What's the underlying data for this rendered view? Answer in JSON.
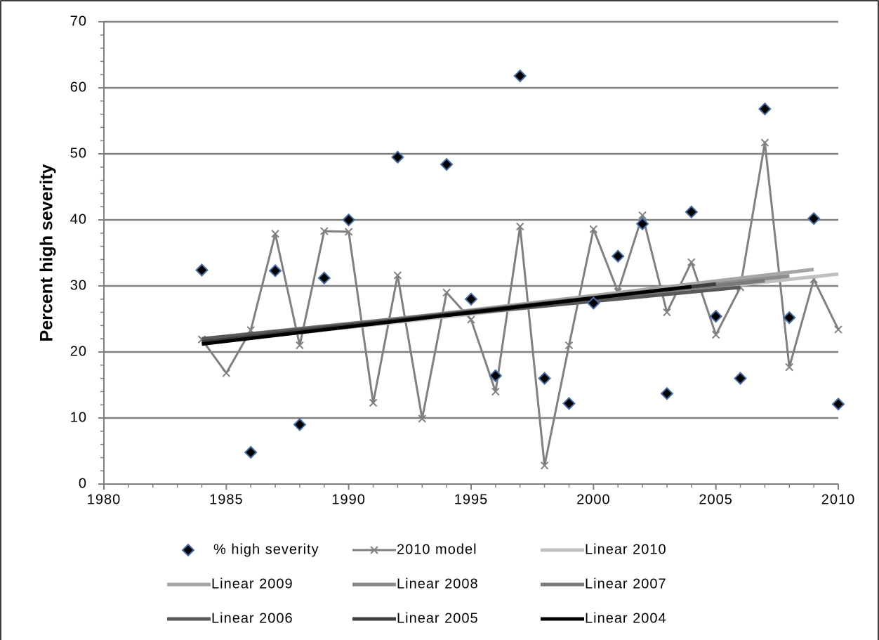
{
  "chart_data": {
    "type": "scatter",
    "y_label": "Percent high severity",
    "xlim": [
      1980,
      2010
    ],
    "xticks": [
      1980,
      1985,
      1990,
      1995,
      2000,
      2005,
      2010
    ],
    "x_minor_step": 1,
    "ylim": [
      0,
      70
    ],
    "yticks": [
      0,
      10,
      20,
      30,
      40,
      50,
      60,
      70
    ],
    "y_minor_step": 2,
    "grid": true,
    "series": [
      {
        "name": "% high severity",
        "style": "marker",
        "color": "#000000",
        "x": [
          1984,
          1986,
          1987,
          1988,
          1989,
          1990,
          1992,
          1994,
          1995,
          1996,
          1997,
          1998,
          1999,
          2000,
          2001,
          2002,
          2003,
          2004,
          2005,
          2006,
          2007,
          2008,
          2009,
          2010
        ],
        "values": [
          32.4,
          4.8,
          32.3,
          9.0,
          31.2,
          40.0,
          49.5,
          48.4,
          28.0,
          16.4,
          61.8,
          16.0,
          12.2,
          27.4,
          34.5,
          39.4,
          13.7,
          41.2,
          25.4,
          16.0,
          56.8,
          25.2,
          40.2,
          12.1
        ]
      },
      {
        "name": "2010 model",
        "style": "line-marker",
        "color": "#808080",
        "x": [
          1984,
          1985,
          1986,
          1987,
          1988,
          1989,
          1990,
          1991,
          1992,
          1993,
          1994,
          1995,
          1996,
          1997,
          1998,
          1999,
          2000,
          2001,
          2002,
          2003,
          2004,
          2005,
          2006,
          2007,
          2008,
          2009,
          2010
        ],
        "values": [
          21.9,
          16.8,
          23.3,
          37.9,
          21.0,
          38.3,
          38.2,
          12.3,
          31.6,
          9.9,
          29.0,
          24.9,
          14.0,
          39.0,
          2.8,
          21.0,
          38.6,
          29.1,
          40.7,
          26.0,
          33.6,
          22.6,
          29.8,
          51.7,
          17.7,
          31.0,
          23.4
        ]
      },
      {
        "name": "Linear 2010",
        "style": "line",
        "color": "#c0c0c0",
        "x": [
          1984,
          2010
        ],
        "values": [
          21.3,
          31.8
        ]
      },
      {
        "name": "Linear 2009",
        "style": "line",
        "color": "#a6a6a6",
        "x": [
          1984,
          2009
        ],
        "values": [
          21.5,
          32.5
        ]
      },
      {
        "name": "Linear 2008",
        "style": "line",
        "color": "#8c8c8c",
        "x": [
          1984,
          2008
        ],
        "values": [
          21.8,
          31.5
        ]
      },
      {
        "name": "Linear 2007",
        "style": "line",
        "color": "#7a7a7a",
        "x": [
          1984,
          2007
        ],
        "values": [
          22.0,
          30.8
        ]
      },
      {
        "name": "Linear 2006",
        "style": "line",
        "color": "#595959",
        "x": [
          1984,
          2006
        ],
        "values": [
          22.0,
          29.8
        ]
      },
      {
        "name": "Linear 2005",
        "style": "line",
        "color": "#3f3f3f",
        "x": [
          1984,
          2005
        ],
        "values": [
          21.5,
          30.3
        ]
      },
      {
        "name": "Linear 2004",
        "style": "line",
        "color": "#000000",
        "x": [
          1984,
          2004
        ],
        "values": [
          21.2,
          29.9
        ]
      }
    ]
  }
}
